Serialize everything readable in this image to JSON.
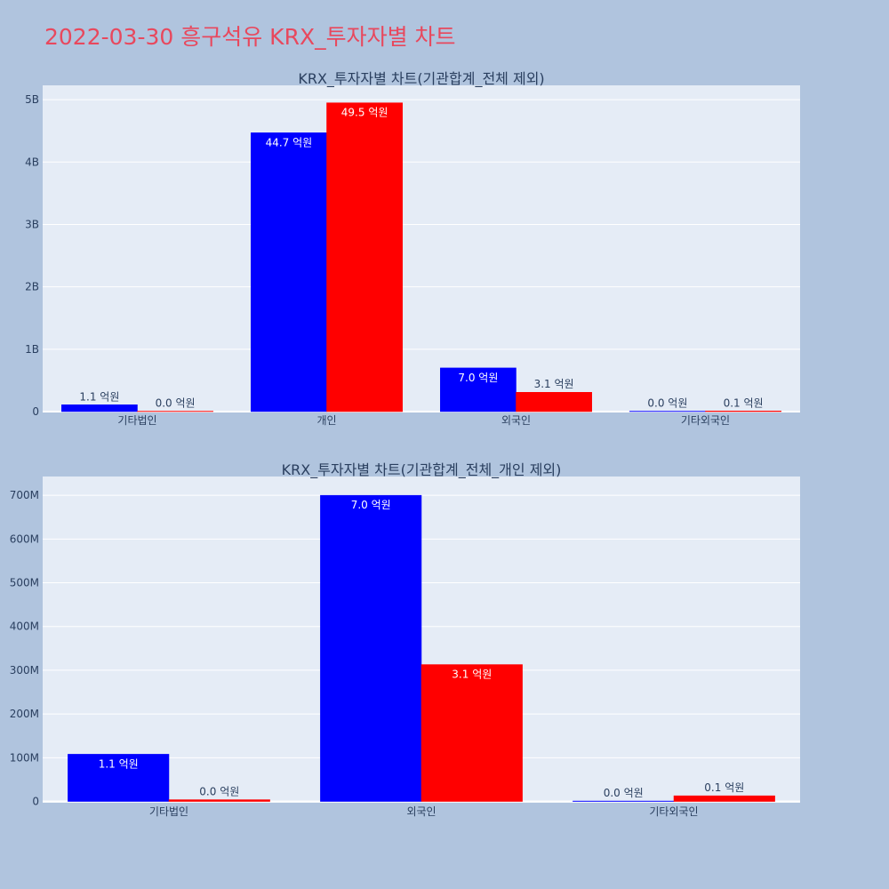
{
  "page_title": "2022-03-30 흥구석유 KRX_투자자별 차트",
  "colors": {
    "buy": "#0000ff",
    "sell": "#ff0000",
    "plot_bg": "#e5ecf6",
    "page_bg": "#b0c4de",
    "title": "#e8485d"
  },
  "chart_data": [
    {
      "type": "bar",
      "title": "KRX_투자자별 차트(기관합계_전체 제외)",
      "categories": [
        "기타법인",
        "개인",
        "외국인",
        "기타외국인"
      ],
      "series": [
        {
          "values": [
            110000000,
            4470000000,
            700000000,
            1000000
          ],
          "labels": [
            "1.1 억원",
            "44.7 억원",
            "7.0 억원",
            "0.0 억원"
          ]
        },
        {
          "values": [
            1000000,
            4950000000,
            310000000,
            10000000
          ],
          "labels": [
            "0.0 억원",
            "49.5 억원",
            "3.1 억원",
            "0.1 억원"
          ]
        }
      ],
      "ylim": [
        0,
        5230000000
      ],
      "yticks": [
        0,
        1000000000,
        2000000000,
        3000000000,
        4000000000,
        5000000000
      ],
      "ytick_labels": [
        "0",
        "1B",
        "2B",
        "3B",
        "4B",
        "5B"
      ],
      "grid": true
    },
    {
      "type": "bar",
      "title": "KRX_투자자별 차트(기관합계_전체_개인 제외)",
      "categories": [
        "기타법인",
        "외국인",
        "기타외국인"
      ],
      "series": [
        {
          "values": [
            108000000,
            700000000,
            1000000
          ],
          "labels": [
            "1.1 억원",
            "7.0 억원",
            "0.0 억원"
          ]
        },
        {
          "values": [
            4000000,
            313000000,
            13000000
          ],
          "labels": [
            "0.0 억원",
            "3.1 억원",
            "0.1 억원"
          ]
        }
      ],
      "ylim": [
        -3000000,
        743000000
      ],
      "yticks": [
        0,
        100000000,
        200000000,
        300000000,
        400000000,
        500000000,
        600000000,
        700000000
      ],
      "ytick_labels": [
        "0",
        "100M",
        "200M",
        "300M",
        "400M",
        "500M",
        "600M",
        "700M"
      ],
      "grid": true
    }
  ]
}
